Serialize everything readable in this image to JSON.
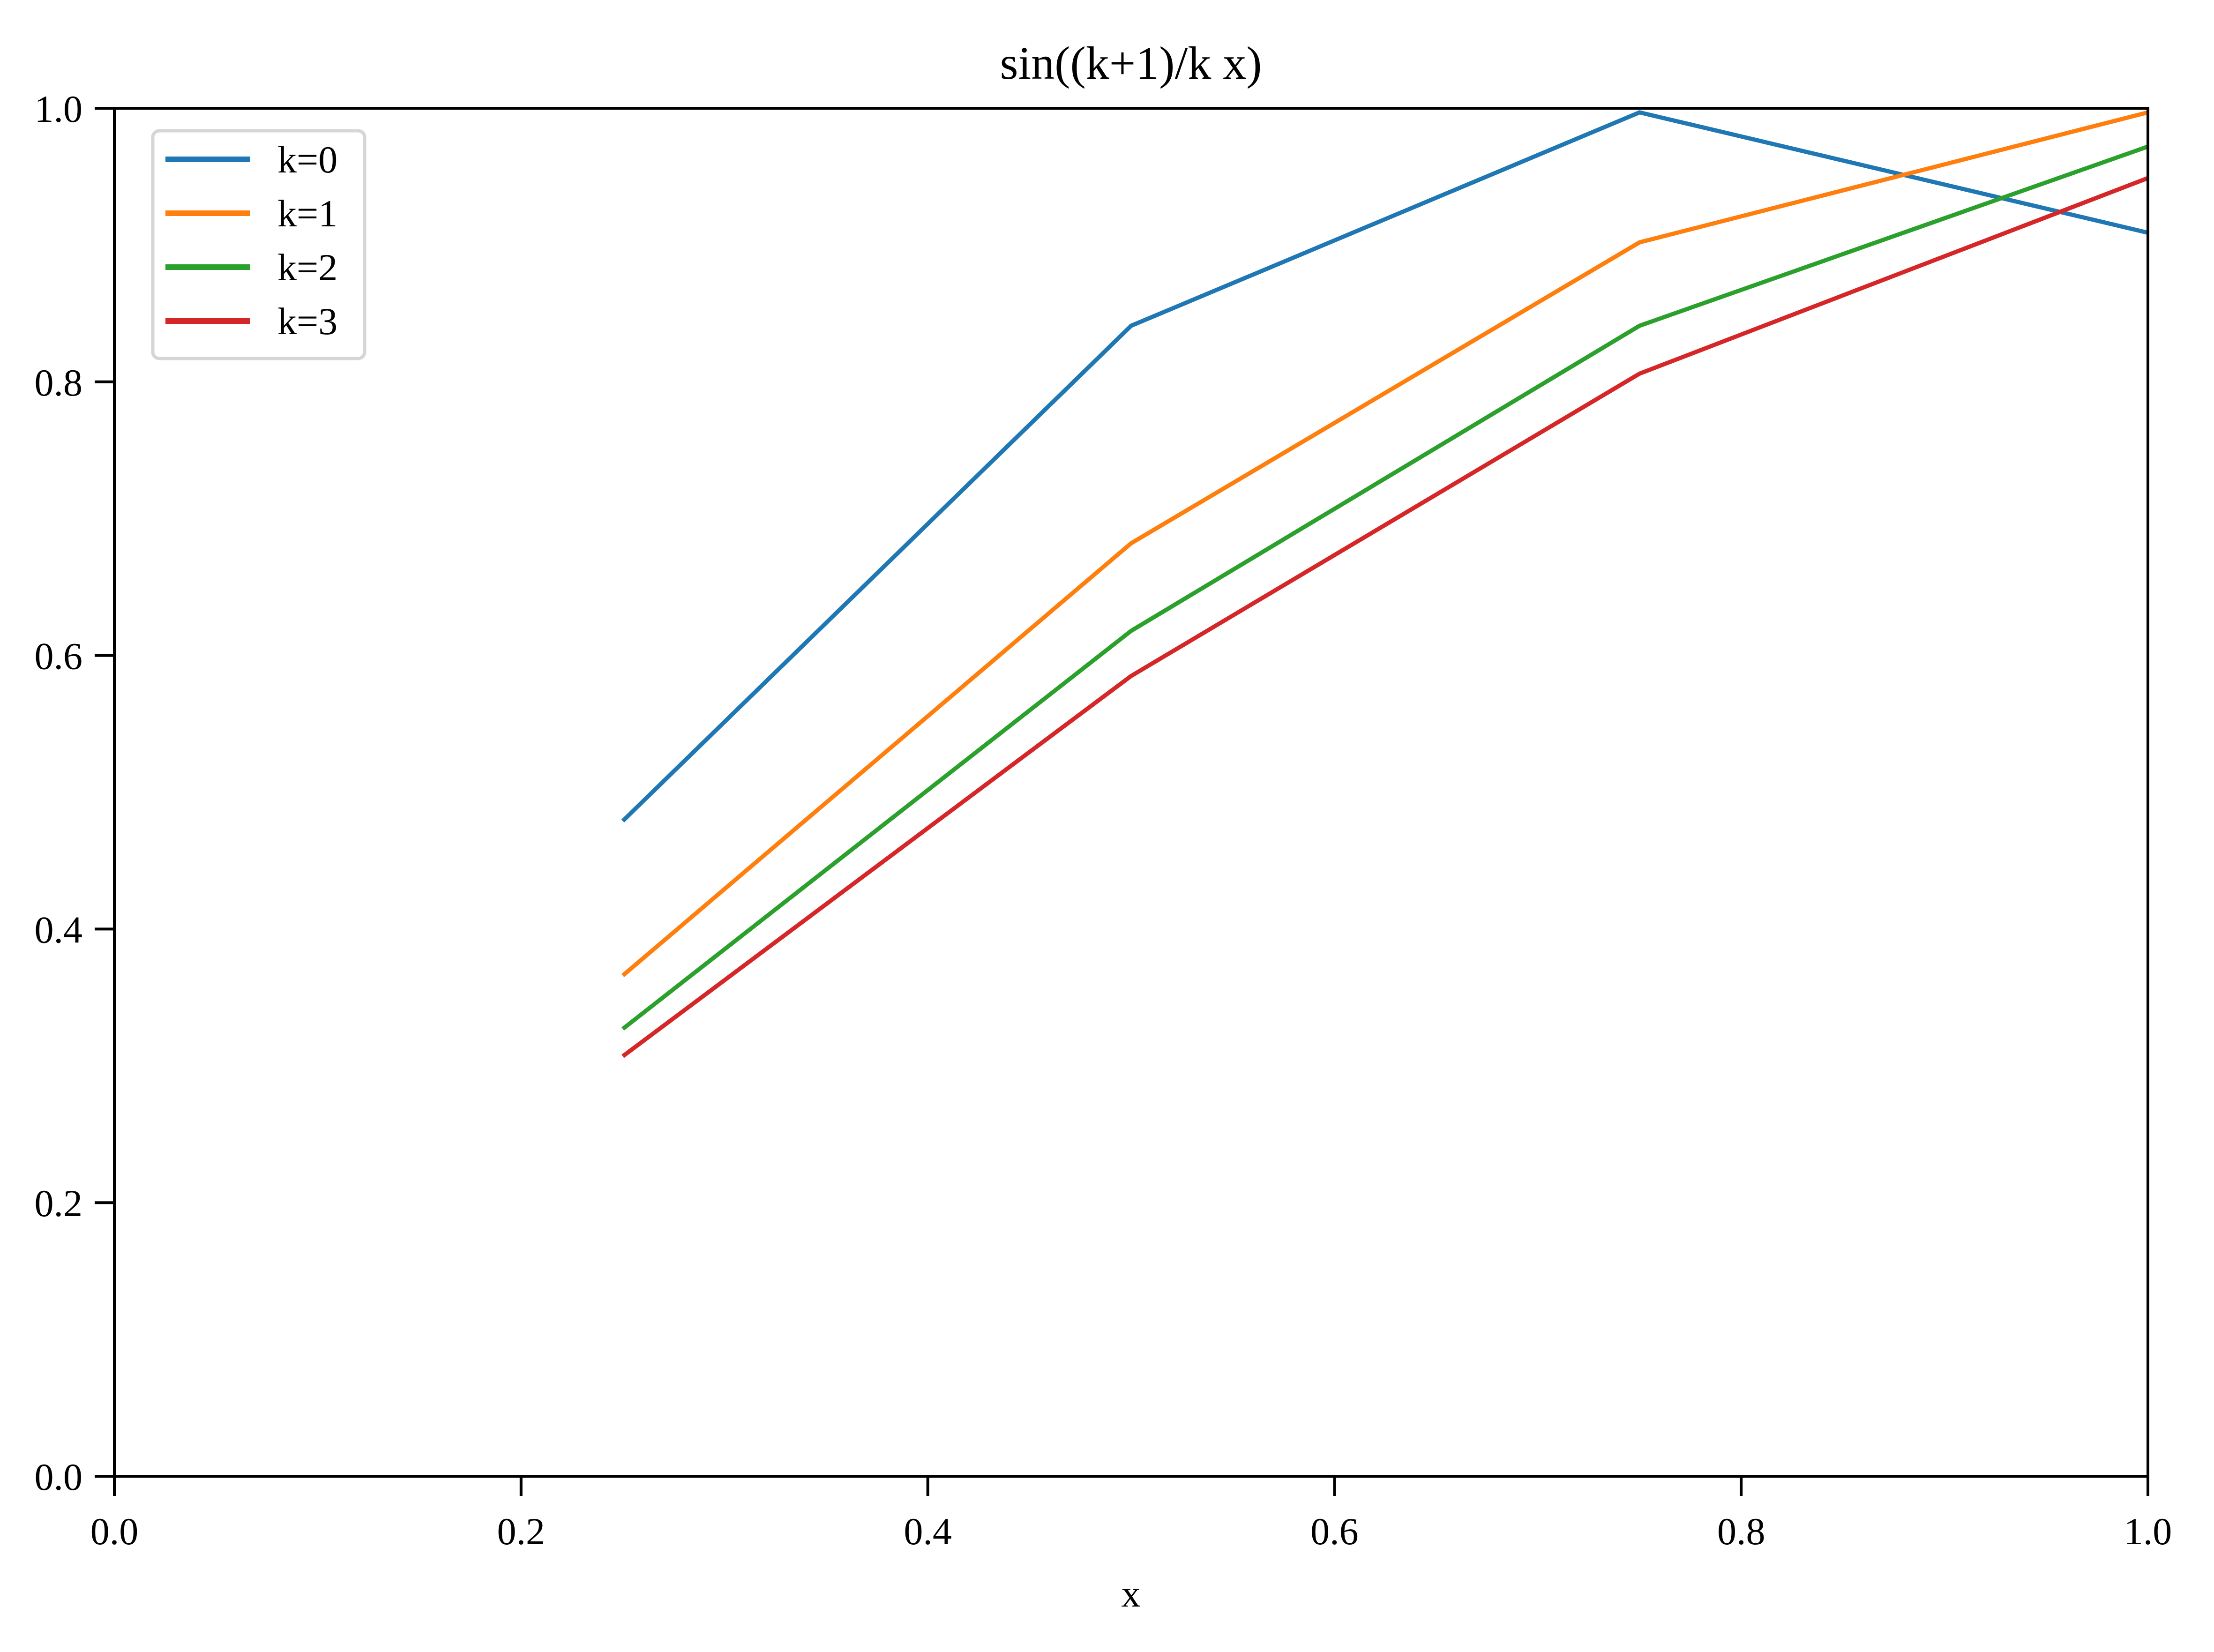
{
  "chart_data": {
    "type": "line",
    "title": "sin((k+1)/k x)",
    "xlabel": "x",
    "ylabel": "",
    "xlim": [
      0.0,
      1.0
    ],
    "ylim": [
      0.0,
      1.0
    ],
    "grid": false,
    "legend_position": "upper left",
    "x": [
      0.25,
      0.5,
      0.75,
      1.0
    ],
    "x_ticks": [
      "0.0",
      "0.2",
      "0.4",
      "0.6",
      "0.8",
      "1.0"
    ],
    "y_ticks": [
      "0.0",
      "0.2",
      "0.4",
      "0.6",
      "0.8",
      "1.0"
    ],
    "series": [
      {
        "name": "k=0",
        "color": "#1f77b4",
        "values": [
          0.479,
          0.841,
          0.997,
          0.909
        ]
      },
      {
        "name": "k=1",
        "color": "#ff7f0e",
        "values": [
          0.366,
          0.682,
          0.902,
          0.997
        ]
      },
      {
        "name": "k=2",
        "color": "#2ca02c",
        "values": [
          0.327,
          0.618,
          0.841,
          0.972
        ]
      },
      {
        "name": "k=3",
        "color": "#d62728",
        "values": [
          0.307,
          0.585,
          0.806,
          0.949
        ]
      }
    ]
  }
}
